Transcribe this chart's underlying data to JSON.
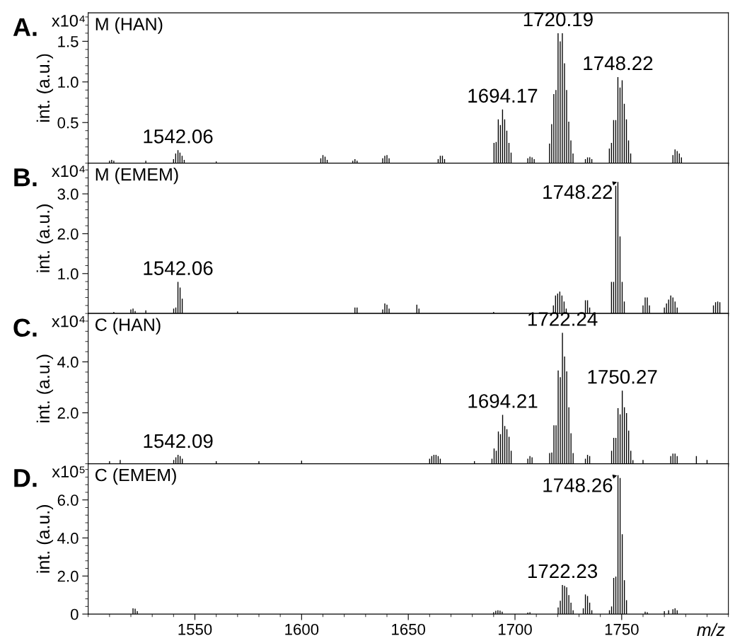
{
  "chart_data": [
    {
      "type": "bar",
      "title": "M (HAN)",
      "ylabel": "int. (a.u.)",
      "color": "#000000",
      "tick_labels": "y",
      "annotations": [
        "A.",
        "x10⁴",
        {
          "text": "1542.06",
          "x": 1542.06,
          "y": 0.16
        },
        {
          "text": "1694.17",
          "x": 1694.17,
          "y": 0.66
        },
        {
          "text": "1720.19",
          "x": 1720.19,
          "y": 1.6
        },
        {
          "text": "1748.22",
          "x": 1748.22,
          "y": 1.06
        }
      ],
      "xlim": [
        1500,
        1800
      ],
      "xticks": [
        1550,
        1600,
        1650,
        1700,
        1750
      ],
      "ylim": [
        0,
        1.85
      ],
      "yticks": [
        {
          "value": 0.5,
          "label": "0.5"
        },
        {
          "value": 1.0,
          "label": "1.0"
        },
        {
          "value": 1.5,
          "label": "1.5"
        }
      ],
      "x": [
        1510,
        1511,
        1512,
        1527,
        1540,
        1541,
        1542.06,
        1543,
        1544,
        1545,
        1560,
        1609,
        1610,
        1611,
        1612,
        1624,
        1625,
        1626,
        1638,
        1639,
        1640,
        1641,
        1664,
        1665,
        1666,
        1667,
        1690.17,
        1691.17,
        1692.17,
        1693.17,
        1694.17,
        1695.17,
        1696.17,
        1697.17,
        1698.17,
        1706,
        1707,
        1708,
        1709,
        1716.19,
        1717.19,
        1718.19,
        1719.19,
        1720.19,
        1721.19,
        1722.19,
        1723.19,
        1724.19,
        1725.19,
        1726.19,
        1727.19,
        1733,
        1734,
        1735,
        1736,
        1744.22,
        1745.22,
        1746.22,
        1747.22,
        1748.22,
        1749.22,
        1750.22,
        1751.22,
        1752.22,
        1753.22,
        1754.22,
        1774,
        1775,
        1776,
        1777,
        1778
      ],
      "values": [
        0.03,
        0.04,
        0.03,
        0.03,
        0.05,
        0.12,
        0.16,
        0.13,
        0.09,
        0.04,
        0.02,
        0.06,
        0.1,
        0.08,
        0.04,
        0.03,
        0.05,
        0.03,
        0.06,
        0.09,
        0.1,
        0.06,
        0.05,
        0.09,
        0.09,
        0.05,
        0.25,
        0.26,
        0.54,
        0.47,
        0.66,
        0.54,
        0.4,
        0.25,
        0.13,
        0.06,
        0.08,
        0.07,
        0.05,
        0.24,
        0.48,
        0.85,
        0.9,
        1.6,
        1.5,
        1.6,
        1.23,
        0.9,
        0.51,
        0.28,
        0.12,
        0.05,
        0.07,
        0.07,
        0.05,
        0.18,
        0.25,
        0.53,
        0.53,
        1.06,
        0.93,
        1.02,
        0.73,
        0.54,
        0.28,
        0.12,
        0.1,
        0.17,
        0.15,
        0.12,
        0.07
      ]
    },
    {
      "type": "bar",
      "title": "M (EMEM)",
      "ylabel": "int. (a.u.)",
      "color": "#000000",
      "tick_labels": "y",
      "annotations": [
        "B.",
        "x10⁴",
        {
          "text": "1542.06",
          "x": 1542.06,
          "y": 0.79
        },
        {
          "text": "1748.22",
          "x": 1748.22,
          "y": 3.3
        }
      ],
      "xlim": [
        1500,
        1800
      ],
      "xticks": [
        1550,
        1600,
        1650,
        1700,
        1750
      ],
      "ylim": [
        0,
        3.77
      ],
      "yticks": [
        {
          "value": 1.0,
          "label": "1.0"
        },
        {
          "value": 2.0,
          "label": "2.0"
        },
        {
          "value": 3.0,
          "label": "3.0"
        }
      ],
      "x": [
        1512,
        1520,
        1521,
        1522,
        1527,
        1540.06,
        1541.06,
        1542.06,
        1543.06,
        1544.06,
        1570,
        1625,
        1626,
        1638,
        1639,
        1640,
        1641,
        1654,
        1655,
        1690,
        1718,
        1719,
        1720,
        1721,
        1722,
        1723,
        1724,
        1733,
        1734,
        1735,
        1745.22,
        1746.22,
        1747.22,
        1748.22,
        1749.22,
        1750.22,
        1751.22,
        1760,
        1761,
        1762,
        1763,
        1770,
        1771,
        1772,
        1773,
        1774,
        1775,
        1776,
        1793,
        1794,
        1795,
        1796
      ],
      "values": [
        0.04,
        0.1,
        0.12,
        0.06,
        0.08,
        0.12,
        0.15,
        0.79,
        0.65,
        0.37,
        0.05,
        0.15,
        0.15,
        0.1,
        0.25,
        0.22,
        0.12,
        0.22,
        0.12,
        0.04,
        0.2,
        0.45,
        0.5,
        0.55,
        0.45,
        0.3,
        0.12,
        0.33,
        0.33,
        0.15,
        0.79,
        0.79,
        3.2,
        3.3,
        1.93,
        0.79,
        0.3,
        0.2,
        0.4,
        0.4,
        0.2,
        0.15,
        0.25,
        0.35,
        0.45,
        0.4,
        0.3,
        0.15,
        0.2,
        0.28,
        0.3,
        0.28
      ]
    },
    {
      "type": "bar",
      "title": "C (HAN)",
      "ylabel": "int. (a.u.)",
      "color": "#000000",
      "tick_labels": "y",
      "annotations": [
        "C.",
        "x10⁴",
        {
          "text": "1542.09",
          "x": 1542.09,
          "y": 0.35
        },
        {
          "text": "1694.21",
          "x": 1694.21,
          "y": 1.92
        },
        {
          "text": "1722.24",
          "x": 1722.24,
          "y": 5.14
        },
        {
          "text": "1750.27",
          "x": 1750.27,
          "y": 2.87
        }
      ],
      "xlim": [
        1500,
        1800
      ],
      "xticks": [
        1550,
        1600,
        1650,
        1700,
        1750
      ],
      "ylim": [
        0,
        5.9
      ],
      "yticks": [
        {
          "value": 2.0,
          "label": "2.0"
        },
        {
          "value": 4.0,
          "label": "4.0"
        }
      ],
      "x": [
        1510,
        1515,
        1540.09,
        1541.09,
        1542.09,
        1543.09,
        1544.09,
        1560,
        1580,
        1600,
        1660,
        1661,
        1662,
        1663,
        1664,
        1665,
        1681,
        1689.21,
        1690.21,
        1691.21,
        1692.21,
        1693.21,
        1694.21,
        1695.21,
        1696.21,
        1697.21,
        1698.21,
        1706,
        1707,
        1708,
        1716.24,
        1717.24,
        1718.24,
        1719.24,
        1720.24,
        1721.24,
        1722.24,
        1723.24,
        1724.24,
        1725.24,
        1726.24,
        1727.24,
        1733,
        1734,
        1735,
        1745.27,
        1746.27,
        1747.27,
        1748.27,
        1749.27,
        1750.27,
        1751.27,
        1752.27,
        1753.27,
        1754.27,
        1755.27,
        1760,
        1773,
        1774,
        1775,
        1776,
        1785,
        1790
      ],
      "values": [
        0.1,
        0.15,
        0.15,
        0.25,
        0.35,
        0.3,
        0.2,
        0.1,
        0.1,
        0.12,
        0.2,
        0.3,
        0.35,
        0.35,
        0.3,
        0.2,
        0.1,
        0.2,
        0.6,
        0.51,
        1.27,
        1.16,
        1.92,
        1.48,
        1.36,
        1.06,
        0.51,
        0.2,
        0.3,
        0.25,
        0.42,
        0.44,
        1.51,
        1.51,
        3.66,
        3.4,
        5.14,
        4.21,
        3.63,
        2.22,
        1.2,
        0.42,
        0.2,
        0.35,
        0.3,
        0.51,
        1.02,
        1.02,
        2.18,
        1.94,
        2.87,
        2.22,
        1.99,
        1.3,
        0.51,
        0.14,
        0.15,
        0.3,
        0.4,
        0.4,
        0.3,
        0.3,
        0.15
      ]
    },
    {
      "type": "bar",
      "title": "C (EMEM)",
      "ylabel": "int. (a.u.)",
      "xlabel": "m/z",
      "color": "#000000",
      "annotations": [
        "D.",
        "x10⁵",
        {
          "text": "1722.23",
          "x": 1722.23,
          "y": 1.53
        },
        {
          "text": "1748.26",
          "x": 1748.26,
          "y": 7.3
        }
      ],
      "xlim": [
        1500,
        1800
      ],
      "xticks": [
        1550,
        1600,
        1650,
        1700,
        1750
      ],
      "ylim": [
        0,
        7.9
      ],
      "yticks": [
        0,
        {
          "value": 2.0,
          "label": "2.0"
        },
        {
          "value": 4.0,
          "label": "4.0"
        },
        {
          "value": 6.0,
          "label": "6.0"
        }
      ],
      "x": [
        1521,
        1522,
        1523,
        1690,
        1691,
        1692,
        1693,
        1694,
        1706,
        1707,
        1720.23,
        1721.23,
        1722.23,
        1723.23,
        1724.23,
        1725.23,
        1726.23,
        1727.23,
        1732,
        1733,
        1734,
        1735,
        1736,
        1744.26,
        1745.26,
        1746.26,
        1747.26,
        1748.26,
        1749.26,
        1750.26,
        1751.26,
        1752.26,
        1761,
        1762,
        1770,
        1772,
        1774,
        1775,
        1776
      ],
      "values": [
        0.3,
        0.28,
        0.15,
        0.1,
        0.17,
        0.2,
        0.18,
        0.12,
        0.08,
        0.1,
        0.35,
        0.7,
        1.53,
        1.48,
        1.41,
        1.0,
        0.6,
        0.2,
        0.3,
        1.03,
        0.95,
        0.6,
        0.2,
        0.2,
        0.4,
        1.9,
        1.97,
        7.3,
        7.15,
        4.2,
        1.78,
        0.73,
        0.12,
        0.1,
        0.15,
        0.2,
        0.25,
        0.3,
        0.2
      ]
    }
  ]
}
